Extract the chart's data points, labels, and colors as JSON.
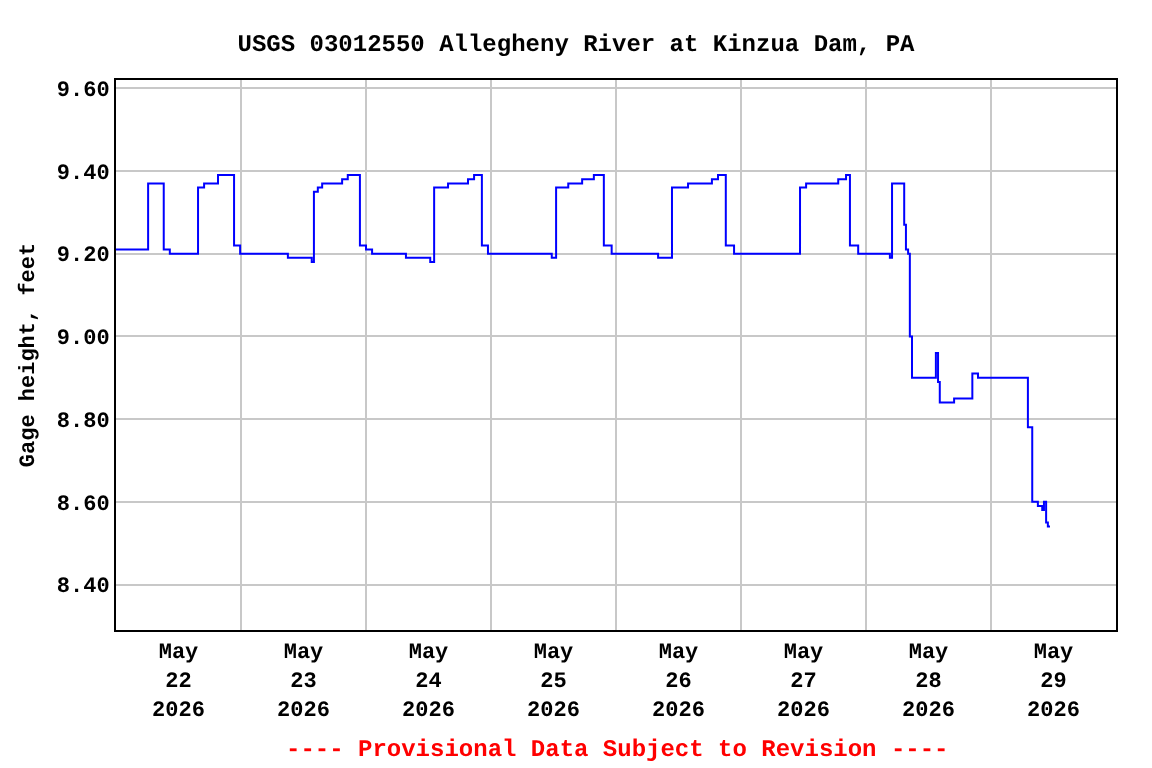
{
  "chart_data": {
    "type": "step",
    "title": "USGS 03012550 Allegheny River at Kinzua Dam, PA",
    "ylabel": "Gage height, feet",
    "annotations": [
      "---- Provisional Data Subject to Revision ----"
    ],
    "x": [
      "2026-05-22T00:00",
      "2026-05-22T06:10",
      "2026-05-22T09:10",
      "2026-05-22T10:20",
      "2026-05-22T15:45",
      "2026-05-22T16:55",
      "2026-05-22T19:35",
      "2026-05-22T22:40",
      "2026-05-22T23:50",
      "2026-05-23T09:00",
      "2026-05-23T13:35",
      "2026-05-23T14:00",
      "2026-05-23T14:45",
      "2026-05-23T15:35",
      "2026-05-23T19:25",
      "2026-05-23T20:30",
      "2026-05-23T22:50",
      "2026-05-24T00:00",
      "2026-05-24T01:10",
      "2026-05-24T07:40",
      "2026-05-24T12:20",
      "2026-05-24T13:05",
      "2026-05-24T15:45",
      "2026-05-24T19:35",
      "2026-05-24T20:45",
      "2026-05-24T22:15",
      "2026-05-24T23:25",
      "2026-05-25T11:40",
      "2026-05-25T12:30",
      "2026-05-25T14:50",
      "2026-05-25T17:30",
      "2026-05-25T19:45",
      "2026-05-25T21:40",
      "2026-05-25T23:10",
      "2026-05-26T08:05",
      "2026-05-26T10:45",
      "2026-05-26T13:50",
      "2026-05-26T18:25",
      "2026-05-26T19:35",
      "2026-05-26T21:05",
      "2026-05-26T22:40",
      "2026-05-27T11:20",
      "2026-05-27T12:30",
      "2026-05-27T18:40",
      "2026-05-27T20:10",
      "2026-05-27T20:55",
      "2026-05-27T22:30",
      "2026-05-28T04:35",
      "2026-05-28T05:00",
      "2026-05-28T07:20",
      "2026-05-28T07:40",
      "2026-05-28T08:05",
      "2026-05-28T08:25",
      "2026-05-28T08:50",
      "2026-05-28T13:25",
      "2026-05-28T13:50",
      "2026-05-28T14:10",
      "2026-05-28T16:55",
      "2026-05-28T20:25",
      "2026-05-28T21:30",
      "2026-05-29T07:05",
      "2026-05-29T07:55",
      "2026-05-29T09:00",
      "2026-05-29T09:50",
      "2026-05-29T10:10",
      "2026-05-29T10:35",
      "2026-05-29T10:55",
      "2026-05-29T11:20"
    ],
    "series": [
      {
        "color": "#0000ff",
        "values": [
          9.21,
          9.37,
          9.21,
          9.2,
          9.36,
          9.37,
          9.39,
          9.22,
          9.2,
          9.19,
          9.18,
          9.35,
          9.36,
          9.37,
          9.38,
          9.39,
          9.22,
          9.21,
          9.2,
          9.19,
          9.18,
          9.36,
          9.37,
          9.38,
          9.39,
          9.22,
          9.2,
          9.19,
          9.36,
          9.37,
          9.38,
          9.39,
          9.22,
          9.2,
          9.19,
          9.36,
          9.37,
          9.38,
          9.39,
          9.22,
          9.2,
          9.36,
          9.37,
          9.38,
          9.39,
          9.22,
          9.2,
          9.19,
          9.37,
          9.27,
          9.21,
          9.2,
          9.0,
          8.9,
          8.96,
          8.89,
          8.84,
          8.85,
          8.91,
          8.9,
          8.78,
          8.6,
          8.59,
          8.58,
          8.6,
          8.55,
          8.54,
          8.54
        ]
      }
    ],
    "xlim": [
      "2026-05-22T00:00",
      "2026-05-30T00:00"
    ],
    "xticks": [
      {
        "value": "2026-05-22T12:00",
        "label": "May\n22\n2026"
      },
      {
        "value": "2026-05-23T12:00",
        "label": "May\n23\n2026"
      },
      {
        "value": "2026-05-24T12:00",
        "label": "May\n24\n2026"
      },
      {
        "value": "2026-05-25T12:00",
        "label": "May\n25\n2026"
      },
      {
        "value": "2026-05-26T12:00",
        "label": "May\n26\n2026"
      },
      {
        "value": "2026-05-27T12:00",
        "label": "May\n27\n2026"
      },
      {
        "value": "2026-05-28T12:00",
        "label": "May\n28\n2026"
      },
      {
        "value": "2026-05-29T12:00",
        "label": "May\n29\n2026"
      },
      {
        "value": "2026-05-23T00:00",
        "label": null
      },
      {
        "value": "2026-05-24T00:00",
        "label": null
      },
      {
        "value": "2026-05-25T00:00",
        "label": null
      },
      {
        "value": "2026-05-26T00:00",
        "label": null
      },
      {
        "value": "2026-05-27T00:00",
        "label": null
      },
      {
        "value": "2026-05-28T00:00",
        "label": null
      },
      {
        "value": "2026-05-29T00:00",
        "label": null
      }
    ],
    "ylim": [
      8.29,
      9.62
    ],
    "yticks": [
      {
        "value": 8.4,
        "label": "8.40"
      },
      {
        "value": 8.6,
        "label": "8.60"
      },
      {
        "value": 8.8,
        "label": "8.80"
      },
      {
        "value": 9.0,
        "label": "9.00"
      },
      {
        "value": 9.2,
        "label": "9.20"
      },
      {
        "value": 9.4,
        "label": "9.40"
      },
      {
        "value": 9.6,
        "label": "9.60"
      }
    ],
    "grid": true,
    "line_style": "solid",
    "marker": "none"
  }
}
